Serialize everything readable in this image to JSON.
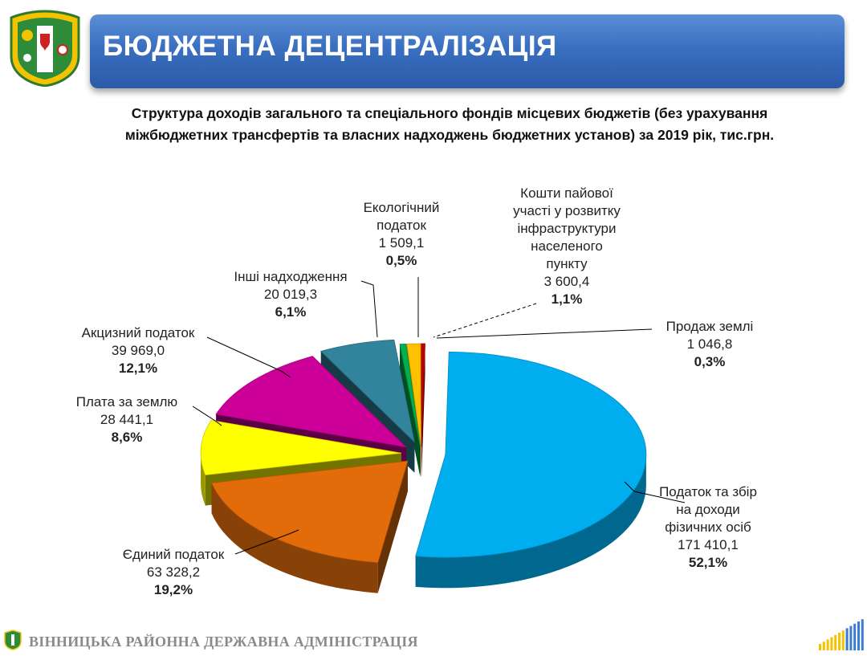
{
  "header": {
    "title": "БЮДЖЕТНА ДЕЦЕНТРАЛІЗАЦІЯ"
  },
  "subtitle": "Структура доходів загального та спеціального фондів місцевих бюджетів (без урахування міжбюджетних трансфертів та власних надходжень бюджетних установ) за 2019 рік, тис.грн.",
  "footer": {
    "org_name": "ВІННИЦЬКА РАЙОННА ДЕРЖАВНА АДМІНІСТРАЦІЯ"
  },
  "chart_data": {
    "type": "pie",
    "style": "3d-exploded",
    "unit": "тис.грн.",
    "slices": [
      {
        "name": "Податок та збір на доходи фізичних осіб",
        "value": "171 410,1",
        "percent": "52,1%",
        "share": 52.1,
        "color": "#00aeef"
      },
      {
        "name": "Єдиний податок",
        "value": "63 328,2",
        "percent": "19,2%",
        "share": 19.2,
        "color": "#e36c0a"
      },
      {
        "name": "Плата за землю",
        "value": "28 441,1",
        "percent": "8,6%",
        "share": 8.6,
        "color": "#ffff00"
      },
      {
        "name": "Акцизний податок",
        "value": "39 969,0",
        "percent": "12,1%",
        "share": 12.1,
        "color": "#cc0099"
      },
      {
        "name": "Інші надходження",
        "value": "20 019,3",
        "percent": "6,1%",
        "share": 6.1,
        "color": "#31849b"
      },
      {
        "name": "Екологічний податок",
        "value": "1 509,1",
        "percent": "0,5%",
        "share": 0.5,
        "color": "#00b050"
      },
      {
        "name": "Кошти пайової участі у розвитку інфраструктури населеного пункту",
        "value": "3 600,4",
        "percent": "1,1%",
        "share": 1.1,
        "color": "#ffc000"
      },
      {
        "name": "Продаж землі",
        "value": "1 046,8",
        "percent": "0,3%",
        "share": 0.3,
        "color": "#c00000"
      }
    ]
  }
}
